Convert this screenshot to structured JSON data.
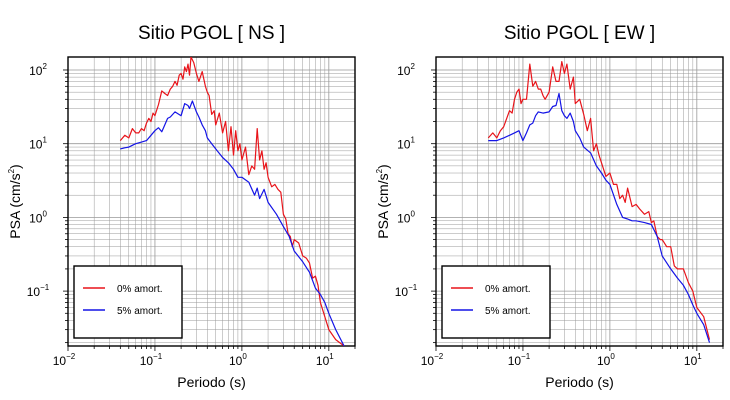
{
  "colors": {
    "undamped": "#e8141a",
    "damped": "#1414e6",
    "grid": "#999999"
  },
  "chart_data": [
    {
      "type": "line",
      "title": "Sitio PGOL [ NS ]",
      "xlabel": "Periodo (s)",
      "ylabel_main": "PSA (cm/s",
      "ylabel_exp": "2",
      "ylabel_close": ")",
      "xscale": "log",
      "yscale": "log",
      "xlim": [
        0.01,
        20
      ],
      "ylim": [
        0.018,
        150
      ],
      "grid": true,
      "legend_position": "bottom-left",
      "xticks": [
        {
          "base": "10",
          "exp": "−2"
        },
        {
          "base": "10",
          "exp": "−1"
        },
        {
          "base": "10",
          "exp": "0"
        },
        {
          "base": "10",
          "exp": "1"
        }
      ],
      "yticks": [
        {
          "base": "10",
          "exp": "−1"
        },
        {
          "base": "10",
          "exp": "0"
        },
        {
          "base": "10",
          "exp": "1"
        },
        {
          "base": "10",
          "exp": "2"
        }
      ],
      "series": [
        {
          "name": "0% amort.",
          "color": "#e8141a",
          "x": [
            0.04,
            0.045,
            0.05,
            0.055,
            0.06,
            0.065,
            0.07,
            0.075,
            0.08,
            0.085,
            0.09,
            0.095,
            0.1,
            0.11,
            0.12,
            0.13,
            0.14,
            0.15,
            0.16,
            0.17,
            0.18,
            0.19,
            0.2,
            0.21,
            0.22,
            0.23,
            0.24,
            0.25,
            0.26,
            0.28,
            0.3,
            0.32,
            0.35,
            0.38,
            0.4,
            0.42,
            0.45,
            0.48,
            0.5,
            0.55,
            0.6,
            0.65,
            0.7,
            0.75,
            0.8,
            0.85,
            0.9,
            0.95,
            1.0,
            1.1,
            1.2,
            1.3,
            1.4,
            1.5,
            1.6,
            1.7,
            1.8,
            1.9,
            2.0,
            2.2,
            2.4,
            2.6,
            2.8,
            3.0,
            3.2,
            3.4,
            3.6,
            3.8,
            4.0,
            4.5,
            5.0,
            5.5,
            6.0,
            6.5,
            7.0,
            7.5,
            8.0,
            9.0,
            10.0,
            12.0,
            15.0
          ],
          "y": [
            11,
            13,
            12,
            16,
            14,
            14,
            16,
            15,
            19,
            22,
            20,
            26,
            24,
            34,
            52,
            48,
            45,
            55,
            60,
            70,
            62,
            85,
            90,
            75,
            110,
            95,
            120,
            85,
            150,
            125,
            90,
            70,
            95,
            60,
            50,
            45,
            25,
            28,
            18,
            26,
            14,
            20,
            8,
            17,
            7,
            15,
            8,
            10,
            6,
            9,
            3.8,
            5,
            4.5,
            16,
            6,
            8,
            4.5,
            5.5,
            3.5,
            2.6,
            2.8,
            2.4,
            2.2,
            1.1,
            0.95,
            0.6,
            0.55,
            0.4,
            0.5,
            0.45,
            0.3,
            0.28,
            0.24,
            0.15,
            0.16,
            0.12,
            0.07,
            0.045,
            0.03,
            0.022,
            0.018
          ]
        },
        {
          "name": "5% amort.",
          "color": "#1414e6",
          "x": [
            0.04,
            0.045,
            0.05,
            0.06,
            0.07,
            0.08,
            0.09,
            0.1,
            0.11,
            0.12,
            0.13,
            0.14,
            0.15,
            0.17,
            0.2,
            0.22,
            0.24,
            0.25,
            0.27,
            0.3,
            0.32,
            0.35,
            0.38,
            0.4,
            0.45,
            0.5,
            0.6,
            0.7,
            0.8,
            0.9,
            1.0,
            1.2,
            1.4,
            1.5,
            1.6,
            1.8,
            2.0,
            2.5,
            3.0,
            3.5,
            4.0,
            5.0,
            6.0,
            7.0,
            8.0,
            9.0,
            10.0,
            12.0,
            15.0
          ],
          "y": [
            8.5,
            8.8,
            9,
            10,
            10.5,
            11,
            13,
            15,
            16.5,
            14.5,
            18,
            22,
            23,
            27,
            24,
            35,
            33,
            30,
            38,
            27,
            23,
            18,
            15,
            12,
            10,
            8.5,
            6.5,
            5.5,
            4.5,
            3.5,
            3.5,
            3.0,
            2.0,
            2.5,
            1.8,
            2.4,
            1.6,
            1.1,
            0.75,
            0.55,
            0.35,
            0.25,
            0.18,
            0.11,
            0.09,
            0.07,
            0.05,
            0.03,
            0.018
          ]
        }
      ]
    },
    {
      "type": "line",
      "title": "Sitio PGOL [ EW ]",
      "xlabel": "Periodo (s)",
      "ylabel_main": "PSA (cm/s",
      "ylabel_exp": "2",
      "ylabel_close": ")",
      "xscale": "log",
      "yscale": "log",
      "xlim": [
        0.01,
        20
      ],
      "ylim": [
        0.018,
        150
      ],
      "grid": true,
      "legend_position": "bottom-left",
      "xticks": [
        {
          "base": "10",
          "exp": "−2"
        },
        {
          "base": "10",
          "exp": "−1"
        },
        {
          "base": "10",
          "exp": "0"
        },
        {
          "base": "10",
          "exp": "1"
        }
      ],
      "yticks": [
        {
          "base": "10",
          "exp": "−1"
        },
        {
          "base": "10",
          "exp": "0"
        },
        {
          "base": "10",
          "exp": "1"
        },
        {
          "base": "10",
          "exp": "2"
        }
      ],
      "series": [
        {
          "name": "0% amort.",
          "color": "#e8141a",
          "x": [
            0.04,
            0.045,
            0.05,
            0.055,
            0.06,
            0.065,
            0.07,
            0.075,
            0.08,
            0.085,
            0.09,
            0.095,
            0.1,
            0.11,
            0.12,
            0.13,
            0.14,
            0.15,
            0.16,
            0.17,
            0.18,
            0.2,
            0.22,
            0.24,
            0.26,
            0.28,
            0.3,
            0.32,
            0.35,
            0.38,
            0.4,
            0.45,
            0.5,
            0.55,
            0.6,
            0.65,
            0.7,
            0.75,
            0.8,
            0.9,
            1.0,
            1.1,
            1.2,
            1.3,
            1.4,
            1.5,
            1.6,
            1.8,
            2.0,
            2.2,
            2.5,
            2.8,
            3.0,
            3.2,
            3.5,
            3.8,
            4.0,
            4.5,
            5.0,
            5.5,
            6.0,
            7.0,
            8.0,
            9.0,
            10.0,
            12.0,
            14.0
          ],
          "y": [
            12,
            14,
            12,
            15,
            17,
            22,
            28,
            26,
            40,
            50,
            55,
            35,
            40,
            40,
            120,
            60,
            70,
            55,
            55,
            45,
            40,
            50,
            110,
            70,
            70,
            130,
            90,
            120,
            55,
            80,
            35,
            40,
            25,
            15,
            22,
            8,
            10,
            7,
            5.5,
            3.6,
            4,
            2.8,
            2.8,
            1.8,
            2.0,
            1.6,
            2.5,
            1.4,
            1.5,
            1.3,
            1.1,
            1.2,
            0.85,
            0.9,
            0.55,
            0.5,
            0.5,
            0.4,
            0.4,
            0.22,
            0.2,
            0.2,
            0.13,
            0.1,
            0.06,
            0.045,
            0.022
          ]
        },
        {
          "name": "5% amort.",
          "color": "#1414e6",
          "x": [
            0.04,
            0.05,
            0.06,
            0.07,
            0.08,
            0.09,
            0.1,
            0.11,
            0.12,
            0.13,
            0.14,
            0.15,
            0.17,
            0.2,
            0.22,
            0.24,
            0.26,
            0.28,
            0.3,
            0.32,
            0.35,
            0.38,
            0.4,
            0.45,
            0.5,
            0.6,
            0.7,
            0.8,
            0.9,
            1.0,
            1.2,
            1.4,
            1.6,
            1.8,
            2.0,
            2.5,
            3.0,
            3.5,
            4.0,
            5.0,
            6.0,
            7.0,
            8.0,
            9.0,
            10.0,
            12.0,
            14.0
          ],
          "y": [
            11,
            11,
            12,
            13,
            14,
            15,
            11,
            14,
            18,
            19,
            24,
            27,
            26,
            27,
            32,
            33,
            48,
            28,
            24,
            22,
            26,
            20,
            15,
            12,
            9,
            7.5,
            5,
            4,
            3.2,
            2.8,
            1.5,
            1.0,
            0.95,
            0.9,
            0.9,
            0.85,
            0.8,
            0.55,
            0.3,
            0.2,
            0.15,
            0.12,
            0.09,
            0.065,
            0.05,
            0.035,
            0.02
          ]
        }
      ]
    }
  ]
}
